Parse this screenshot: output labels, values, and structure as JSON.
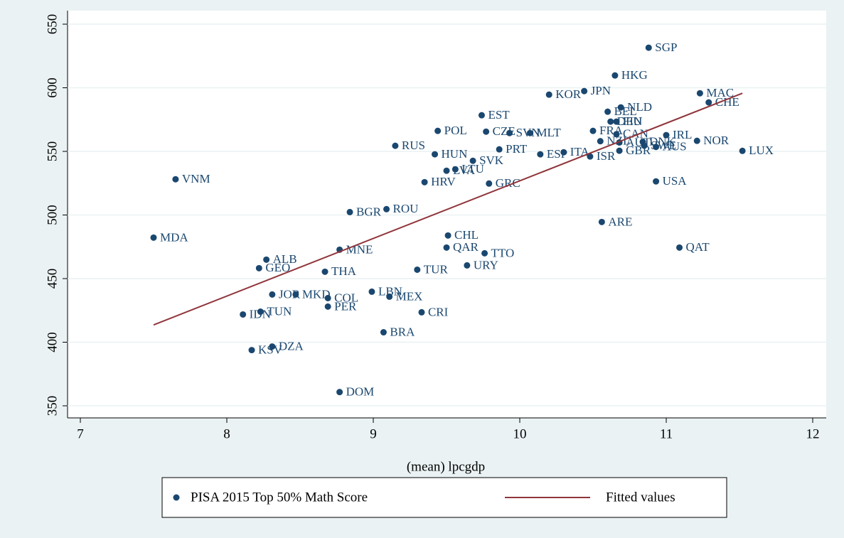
{
  "chart_data": {
    "type": "scatter",
    "x_label": "(mean) lpcgdp",
    "xlim": [
      7,
      12
    ],
    "xticks": [
      7,
      8,
      9,
      10,
      11,
      12
    ],
    "ylim": [
      350,
      650
    ],
    "yticks": [
      350,
      400,
      450,
      500,
      550,
      600,
      650
    ],
    "grid": true,
    "series": [
      {
        "name": "PISA 2015 Top 50% Math Score",
        "color": "#1a476f",
        "labels": [
          "SGP",
          "HKG",
          "MAC",
          "CHE",
          "JPN",
          "KOR",
          "NLD",
          "BEL",
          "DEU",
          "FIN",
          "EST",
          "POL",
          "CZE",
          "SVN",
          "MLT",
          "FRA",
          "IRL",
          "NOR",
          "CAN",
          "AUT",
          "NZL",
          "DNK",
          "SWE",
          "AUS",
          "GBR",
          "ISR",
          "LUX",
          "RUS",
          "HUN",
          "SVK",
          "PRT",
          "ESP",
          "ITA",
          "LTU",
          "LVA",
          "HRV",
          "GRC",
          "VNM",
          "USA",
          "BGR",
          "ROU",
          "ARE",
          "MDA",
          "CHL",
          "QAR",
          "QAT",
          "TTO",
          "MNE",
          "ALB",
          "URY",
          "GEO",
          "THA",
          "TUR",
          "JOR",
          "MKD",
          "COL",
          "LBN",
          "MEX",
          "PER",
          "TUN",
          "IDN",
          "CRI",
          "BRA",
          "DZA",
          "KSV",
          "DOM"
        ],
        "x": [
          10.88,
          10.65,
          11.23,
          11.29,
          10.44,
          10.2,
          10.69,
          10.6,
          10.62,
          10.66,
          9.74,
          9.44,
          9.77,
          9.93,
          10.07,
          10.5,
          11.0,
          11.21,
          10.66,
          10.68,
          10.55,
          10.84,
          10.85,
          10.93,
          10.68,
          10.48,
          11.52,
          9.15,
          9.42,
          9.68,
          9.86,
          10.14,
          10.3,
          9.56,
          9.5,
          9.35,
          9.79,
          7.65,
          10.93,
          8.84,
          9.09,
          10.56,
          7.5,
          9.51,
          9.5,
          11.09,
          9.76,
          8.77,
          8.27,
          9.64,
          8.22,
          8.67,
          9.3,
          8.31,
          8.47,
          8.69,
          8.99,
          9.11,
          8.69,
          8.23,
          8.11,
          9.33,
          9.07,
          8.31,
          8.17,
          8.77
        ],
        "values": [
          631.5,
          609.7,
          595.7,
          588.5,
          597.4,
          594.6,
          584.6,
          581.2,
          573.4,
          573.4,
          578.4,
          566.1,
          565.5,
          564.4,
          564.4,
          566.1,
          562.8,
          558.3,
          563.5,
          557.0,
          558.0,
          557.5,
          554.5,
          553.5,
          550.5,
          546.0,
          550.4,
          554.4,
          547.7,
          542.6,
          551.6,
          547.7,
          549.3,
          535.9,
          534.8,
          525.8,
          524.7,
          528.1,
          526.4,
          502.3,
          504.6,
          494.5,
          482.2,
          483.9,
          474.4,
          474.4,
          469.9,
          472.7,
          464.9,
          460.4,
          458.2,
          455.4,
          457.0,
          437.5,
          437.5,
          434.7,
          439.7,
          435.8,
          428.0,
          424.0,
          421.8,
          423.5,
          407.8,
          396.6,
          393.8,
          360.8
        ]
      },
      {
        "name": "Fitted values",
        "color": "#90353b",
        "x": [
          7.5,
          11.52
        ],
        "values": [
          413.6,
          595.7
        ]
      }
    ]
  }
}
